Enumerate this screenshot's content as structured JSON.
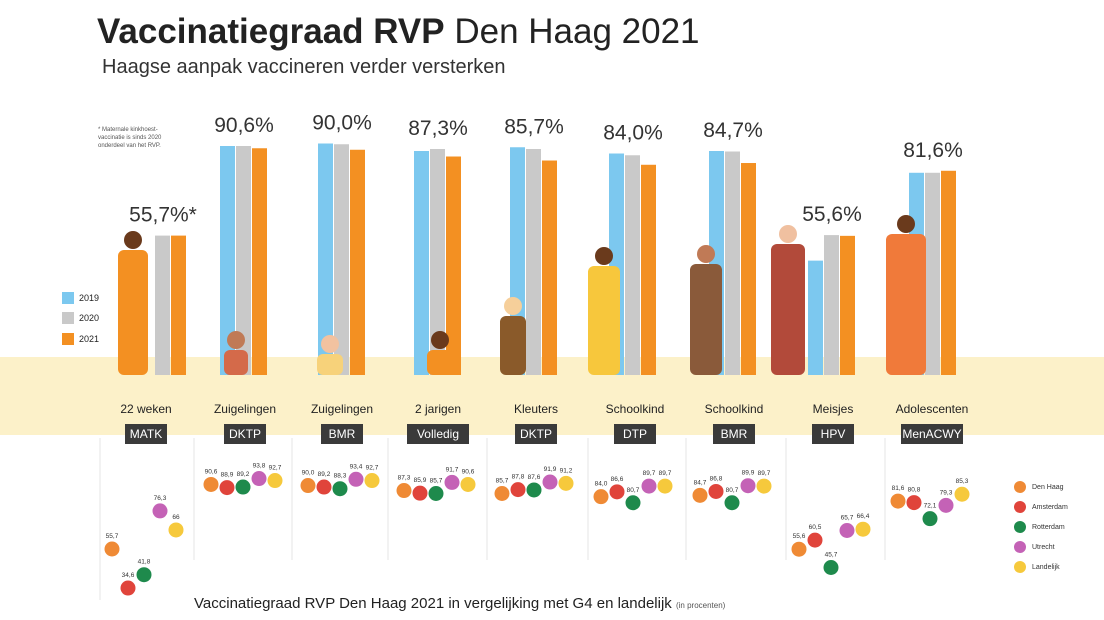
{
  "title_bold": "Vaccinatiegraad RVP",
  "title_rest": "Den Haag 2021",
  "subtitle": "Haagse aanpak vaccineren verder versterken",
  "note": "* Maternale kinkhoest-vaccinatie is sinds 2020 onderdeel van het RVP.",
  "legend": [
    {
      "label": "2019",
      "color": "#7cc8ef"
    },
    {
      "label": "2020",
      "color": "#c9c9c9"
    },
    {
      "label": "2021",
      "color": "#f39022"
    }
  ],
  "g4_legend": [
    {
      "label": "Den Haag",
      "color": "#ef8a35"
    },
    {
      "label": "Amsterdam",
      "color": "#e0443b"
    },
    {
      "label": "Rotterdam",
      "color": "#1e8a4c"
    },
    {
      "label": "Utrecht",
      "color": "#c462b6"
    },
    {
      "label": "Landelijk",
      "color": "#f6c93c"
    }
  ],
  "footer": "Vaccinatiegraad RVP Den Haag 2021 in vergelijking met G4 en landelijk",
  "footer_small": "(in procenten)",
  "chart_data": [
    {
      "type": "bar",
      "categories": [
        "22 weken",
        "Zuigelingen",
        "Zuigelingen",
        "2 jarigen",
        "Kleuters",
        "Schoolkind",
        "Schoolkind",
        "Meisjes",
        "Adolescenten"
      ],
      "tags": [
        "MATK",
        "DKTP",
        "BMR",
        "Volledig",
        "DKTP",
        "DTP",
        "BMR",
        "HPV",
        "MenACWY"
      ],
      "labels_2021": [
        "55,7%*",
        "90,6%",
        "90,0%",
        "87,3%",
        "85,7%",
        "84,0%",
        "84,7%",
        "55,6%",
        "81,6%"
      ],
      "series": [
        {
          "name": "2019",
          "values": [
            null,
            91.5,
            92.5,
            89.5,
            91.0,
            88.5,
            89.5,
            45.7,
            80.8
          ]
        },
        {
          "name": "2020",
          "values": [
            55.7,
            91.5,
            92.2,
            90.3,
            90.3,
            87.8,
            89.3,
            55.9,
            80.8
          ]
        },
        {
          "name": "2021",
          "values": [
            55.7,
            90.6,
            90.0,
            87.3,
            85.7,
            84.0,
            84.7,
            55.6,
            81.6
          ]
        }
      ]
    },
    {
      "type": "scatter",
      "title": "Vaccinatiegraad RVP Den Haag 2021 in vergelijking met G4 en landelijk",
      "categories": [
        "MATK",
        "DKTP",
        "BMR",
        "Volledig",
        "DKTP",
        "DTP",
        "BMR",
        "HPV",
        "MenACWY"
      ],
      "series": [
        {
          "name": "Den Haag",
          "values": [
            "55,7",
            "90,6",
            "90,0",
            "87,3",
            "85,7",
            "84,0",
            "84,7",
            "55,6",
            "81,6"
          ]
        },
        {
          "name": "Amsterdam",
          "values": [
            "34,6",
            "88,9",
            "89,2",
            "85,9",
            "87,8",
            "86,6",
            "86,8",
            "60,5",
            "80,8"
          ]
        },
        {
          "name": "Rotterdam",
          "values": [
            "41,8",
            "89,2",
            "88,3",
            "85,7",
            "87,6",
            "80,7",
            "80,7",
            "45,7",
            "72,1"
          ]
        },
        {
          "name": "Utrecht",
          "values": [
            "76,3",
            "93,8",
            "93,4",
            "91,7",
            "91,9",
            "89,7",
            "89,9",
            "65,7",
            "79,3"
          ]
        },
        {
          "name": "Landelijk",
          "values": [
            "66",
            "92,7",
            "92,7",
            "90,6",
            "91,2",
            "89,7",
            "89,7",
            "66,4",
            "85,3"
          ]
        }
      ]
    }
  ]
}
